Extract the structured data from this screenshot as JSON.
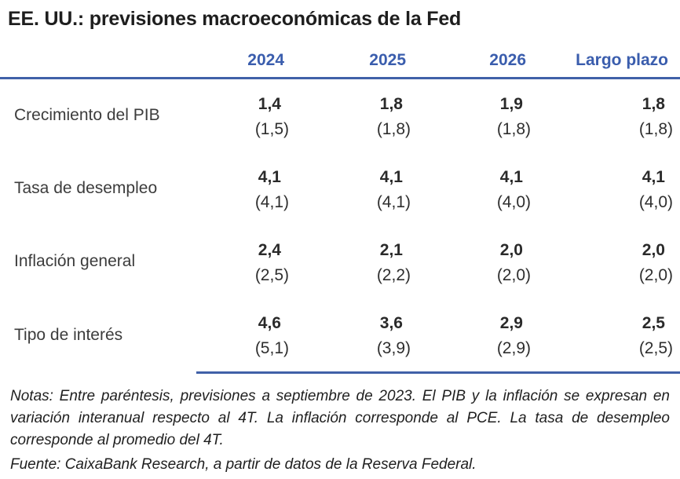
{
  "title": "EE. UU.: previsiones macroeconómicas de la Fed",
  "colors": {
    "accent_blue_text": "#3a5dad",
    "rule_blue": "#4061a8",
    "title_color": "#1e1e1e",
    "body_text": "#2e2e2e"
  },
  "table": {
    "columns": [
      "2024",
      "2025",
      "2026",
      "Largo plazo"
    ],
    "rows": [
      {
        "label": "Crecimiento del PIB",
        "values": [
          "1,4",
          "1,8",
          "1,9",
          "1,8"
        ],
        "previous": [
          "(1,5)",
          "(1,8)",
          "(1,8)",
          "(1,8)"
        ]
      },
      {
        "label": "Tasa de desempleo",
        "values": [
          "4,1",
          "4,1",
          "4,1",
          "4,1"
        ],
        "previous": [
          "(4,1)",
          "(4,1)",
          "(4,0)",
          "(4,0)"
        ]
      },
      {
        "label": "Inflación general",
        "values": [
          "2,4",
          "2,1",
          "2,0",
          "2,0"
        ],
        "previous": [
          "(2,5)",
          "(2,2)",
          "(2,0)",
          "(2,0)"
        ]
      },
      {
        "label": "Tipo de interés",
        "values": [
          "4,6",
          "3,6",
          "2,9",
          "2,5"
        ],
        "previous": [
          "(5,1)",
          "(3,9)",
          "(2,9)",
          "(2,5)"
        ]
      }
    ]
  },
  "notes": {
    "notas": "Notas: Entre paréntesis, previsiones a septiembre de 2023. El PIB y la inflación se expresan en variación interanual respecto al 4T. La inflación corresponde al PCE. La tasa de desempleo corresponde al promedio del 4T.",
    "fuente": "Fuente: CaixaBank Research, a partir de datos de la Reserva Federal."
  },
  "chart_data": {
    "type": "table",
    "title": "EE. UU.: previsiones macroeconómicas de la Fed",
    "columns": [
      "2024",
      "2025",
      "2026",
      "Largo plazo"
    ],
    "rows": [
      {
        "label": "Crecimiento del PIB",
        "current": [
          1.4,
          1.8,
          1.9,
          1.8
        ],
        "previous_sep2023": [
          1.5,
          1.8,
          1.8,
          1.8
        ]
      },
      {
        "label": "Tasa de desempleo",
        "current": [
          4.1,
          4.1,
          4.1,
          4.1
        ],
        "previous_sep2023": [
          4.1,
          4.1,
          4.0,
          4.0
        ]
      },
      {
        "label": "Inflación general",
        "current": [
          2.4,
          2.1,
          2.0,
          2.0
        ],
        "previous_sep2023": [
          2.5,
          2.2,
          2.0,
          2.0
        ]
      },
      {
        "label": "Tipo de interés",
        "current": [
          4.6,
          3.6,
          2.9,
          2.5
        ],
        "previous_sep2023": [
          5.1,
          3.9,
          2.9,
          2.5
        ]
      }
    ],
    "notes": "Entre paréntesis, previsiones a septiembre de 2023. El PIB y la inflación se expresan en variación interanual respecto al 4T. La inflación corresponde al PCE. La tasa de desempleo corresponde al promedio del 4T.",
    "source": "CaixaBank Research, a partir de datos de la Reserva Federal."
  }
}
